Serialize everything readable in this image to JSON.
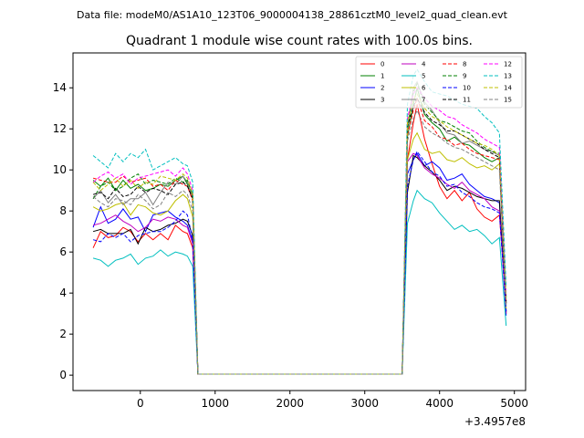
{
  "header_text": "Data file: modeM0/AS1A10_123T06_9000004138_28861cztM0_level2_quad_clean.evt",
  "chart_data": {
    "type": "line",
    "title": "Quadrant 1 module wise count rates with 100.0s bins.",
    "xlabel": "",
    "ylabel": "",
    "x_offset_label": "+3.4957e8",
    "xlim": [
      -900,
      5150
    ],
    "ylim": [
      -0.75,
      15.7
    ],
    "xticks": [
      0,
      1000,
      2000,
      3000,
      4000,
      5000
    ],
    "yticks": [
      0,
      2,
      4,
      6,
      8,
      10,
      12,
      14
    ],
    "grid": false,
    "legend_position": "top-right",
    "x": [
      -630,
      -530,
      -430,
      -330,
      -230,
      -130,
      -30,
      70,
      170,
      270,
      370,
      470,
      570,
      630,
      700,
      770,
      3500,
      3570,
      3650,
      3700,
      3800,
      3900,
      4000,
      4100,
      4200,
      4300,
      4400,
      4500,
      4600,
      4700,
      4800,
      4890
    ],
    "series": [
      {
        "name": "0",
        "color": "#ff0000",
        "dash": false,
        "values": [
          6.2,
          7.0,
          6.7,
          6.8,
          7.2,
          7.0,
          6.5,
          6.9,
          6.6,
          6.9,
          6.6,
          7.3,
          7.0,
          6.9,
          6.2,
          0.05,
          0.05,
          10.5,
          12.3,
          13.2,
          11.5,
          10.3,
          9.2,
          8.6,
          9.0,
          8.5,
          8.9,
          8.1,
          7.7,
          7.5,
          7.8,
          3.5
        ]
      },
      {
        "name": "1",
        "color": "#008000",
        "dash": false,
        "values": [
          9.5,
          9.2,
          9.6,
          9.0,
          9.5,
          9.1,
          9.3,
          9.0,
          9.1,
          9.3,
          9.2,
          9.5,
          9.7,
          9.3,
          8.7,
          0.05,
          0.05,
          11.6,
          13.2,
          14.0,
          12.7,
          12.3,
          12.0,
          11.4,
          11.6,
          11.3,
          11.2,
          10.9,
          10.6,
          10.4,
          10.6,
          3.0
        ]
      },
      {
        "name": "2",
        "color": "#0000ff",
        "dash": false,
        "values": [
          7.2,
          8.2,
          7.4,
          7.6,
          8.1,
          7.6,
          7.7,
          7.0,
          7.8,
          7.9,
          8.0,
          7.7,
          7.5,
          7.3,
          6.5,
          0.05,
          0.05,
          9.8,
          10.5,
          10.8,
          10.2,
          10.4,
          10.1,
          9.5,
          9.6,
          9.8,
          9.3,
          9.0,
          8.7,
          8.6,
          8.4,
          2.9
        ]
      },
      {
        "name": "3",
        "color": "#000000",
        "dash": false,
        "values": [
          7.0,
          7.1,
          6.9,
          6.9,
          6.9,
          7.1,
          6.4,
          7.2,
          7.0,
          7.1,
          7.3,
          7.4,
          7.6,
          7.5,
          6.8,
          0.05,
          0.05,
          8.9,
          10.7,
          10.6,
          10.2,
          9.9,
          9.5,
          9.0,
          9.2,
          9.1,
          8.9,
          8.7,
          8.6,
          8.5,
          8.5,
          3.1
        ]
      },
      {
        "name": "4",
        "color": "#bf00bf",
        "dash": false,
        "values": [
          7.3,
          7.4,
          7.6,
          7.8,
          7.5,
          7.3,
          7.0,
          7.2,
          7.6,
          7.5,
          7.7,
          7.6,
          7.3,
          7.2,
          6.4,
          0.05,
          0.05,
          10.4,
          10.8,
          10.7,
          10.1,
          9.8,
          9.6,
          9.3,
          9.1,
          9.4,
          9.0,
          8.8,
          8.6,
          8.2,
          8.0,
          3.0
        ]
      },
      {
        "name": "5",
        "color": "#00bfbf",
        "dash": false,
        "values": [
          5.7,
          5.6,
          5.3,
          5.6,
          5.7,
          5.9,
          5.4,
          5.7,
          5.8,
          6.1,
          5.8,
          6.0,
          5.9,
          5.8,
          5.3,
          0.05,
          0.05,
          7.4,
          8.5,
          9.0,
          8.6,
          8.4,
          7.9,
          7.5,
          7.1,
          7.3,
          7.0,
          7.1,
          6.8,
          6.4,
          6.7,
          2.4
        ]
      },
      {
        "name": "6",
        "color": "#bfbf00",
        "dash": false,
        "values": [
          8.2,
          8.0,
          8.1,
          8.3,
          8.4,
          7.8,
          8.3,
          8.2,
          7.9,
          7.8,
          8.0,
          8.5,
          8.8,
          8.6,
          7.7,
          0.05,
          0.05,
          10.5,
          11.5,
          11.8,
          11.0,
          10.8,
          10.9,
          10.5,
          10.4,
          10.6,
          10.3,
          10.1,
          10.2,
          10.0,
          10.3,
          3.2
        ]
      },
      {
        "name": "7",
        "color": "#808080",
        "dash": false,
        "values": [
          8.6,
          9.0,
          8.4,
          8.8,
          8.3,
          8.6,
          8.6,
          8.9,
          8.3,
          8.9,
          9.4,
          9.3,
          9.7,
          9.4,
          8.6,
          0.05,
          0.05,
          12.1,
          14.0,
          14.3,
          13.3,
          12.9,
          12.3,
          11.8,
          11.7,
          11.3,
          11.4,
          11.2,
          11.0,
          10.9,
          10.7,
          3.4
        ]
      },
      {
        "name": "8",
        "color": "#ff0000",
        "dash": true,
        "values": [
          9.6,
          9.5,
          9.4,
          9.4,
          9.7,
          9.4,
          9.5,
          9.6,
          9.2,
          9.3,
          9.0,
          9.5,
          9.3,
          9.2,
          8.5,
          0.05,
          0.05,
          11.7,
          12.9,
          13.5,
          12.4,
          12.1,
          11.6,
          11.5,
          11.2,
          11.3,
          11.0,
          10.8,
          10.7,
          10.6,
          10.5,
          3.6
        ]
      },
      {
        "name": "9",
        "color": "#008000",
        "dash": true,
        "values": [
          8.6,
          9.2,
          9.4,
          9.0,
          9.2,
          9.6,
          9.8,
          9.3,
          9.5,
          9.4,
          9.3,
          9.6,
          9.4,
          9.5,
          8.8,
          0.05,
          0.05,
          11.9,
          13.8,
          14.2,
          13.2,
          12.8,
          12.4,
          12.3,
          12.1,
          11.9,
          11.8,
          11.4,
          11.1,
          10.9,
          10.8,
          3.8
        ]
      },
      {
        "name": "10",
        "color": "#0000ff",
        "dash": true,
        "values": [
          6.6,
          6.5,
          6.9,
          6.7,
          6.9,
          6.5,
          6.8,
          6.9,
          7.0,
          7.0,
          7.2,
          7.5,
          8.0,
          7.8,
          6.6,
          0.05,
          0.05,
          9.2,
          10.5,
          10.9,
          10.4,
          9.9,
          9.7,
          9.2,
          9.3,
          8.9,
          8.7,
          8.4,
          8.2,
          8.1,
          7.9,
          3.1
        ]
      },
      {
        "name": "11",
        "color": "#000000",
        "dash": true,
        "values": [
          8.8,
          8.9,
          8.6,
          9.1,
          8.7,
          8.8,
          9.2,
          8.9,
          9.1,
          9.0,
          8.8,
          9.3,
          9.4,
          9.2,
          8.6,
          0.05,
          0.05,
          12.1,
          13.1,
          13.5,
          12.8,
          12.4,
          12.2,
          11.9,
          11.9,
          11.7,
          11.5,
          11.3,
          11.0,
          10.8,
          10.6,
          3.5
        ]
      },
      {
        "name": "12",
        "color": "#ff00ff",
        "dash": true,
        "values": [
          9.4,
          9.7,
          9.9,
          9.6,
          9.8,
          9.3,
          9.6,
          9.7,
          9.8,
          9.9,
          10.0,
          9.7,
          10.1,
          9.8,
          9.0,
          0.05,
          0.05,
          12.5,
          13.7,
          14.0,
          13.5,
          13.1,
          12.9,
          12.6,
          12.5,
          12.2,
          12.0,
          11.8,
          11.5,
          11.3,
          11.1,
          3.9
        ]
      },
      {
        "name": "13",
        "color": "#00bfbf",
        "dash": true,
        "values": [
          10.7,
          10.4,
          10.1,
          10.8,
          10.4,
          10.8,
          10.6,
          11.0,
          10.0,
          10.2,
          10.4,
          10.6,
          10.3,
          10.2,
          9.4,
          0.05,
          0.05,
          13.2,
          14.6,
          14.9,
          14.3,
          13.8,
          13.7,
          13.6,
          13.4,
          13.2,
          13.1,
          13.0,
          12.6,
          12.3,
          11.8,
          4.3
        ]
      },
      {
        "name": "14",
        "color": "#bfbf00",
        "dash": true,
        "values": [
          9.4,
          9.0,
          9.3,
          9.6,
          9.2,
          9.5,
          9.1,
          9.4,
          9.3,
          9.7,
          9.6,
          9.5,
          9.8,
          9.6,
          8.8,
          0.05,
          0.05,
          12.3,
          13.4,
          13.7,
          13.0,
          12.6,
          12.4,
          12.1,
          11.9,
          11.7,
          11.5,
          11.3,
          11.2,
          11.0,
          10.7,
          3.7
        ]
      },
      {
        "name": "15",
        "color": "#808080",
        "dash": true,
        "values": [
          8.7,
          8.4,
          8.2,
          8.6,
          8.5,
          8.3,
          8.8,
          8.5,
          8.1,
          8.3,
          8.9,
          8.7,
          9.0,
          8.8,
          8.0,
          0.05,
          0.05,
          11.4,
          12.5,
          12.9,
          12.1,
          11.8,
          11.6,
          11.3,
          11.1,
          11.0,
          10.8,
          10.6,
          10.4,
          10.2,
          10.0,
          3.3
        ]
      }
    ]
  }
}
